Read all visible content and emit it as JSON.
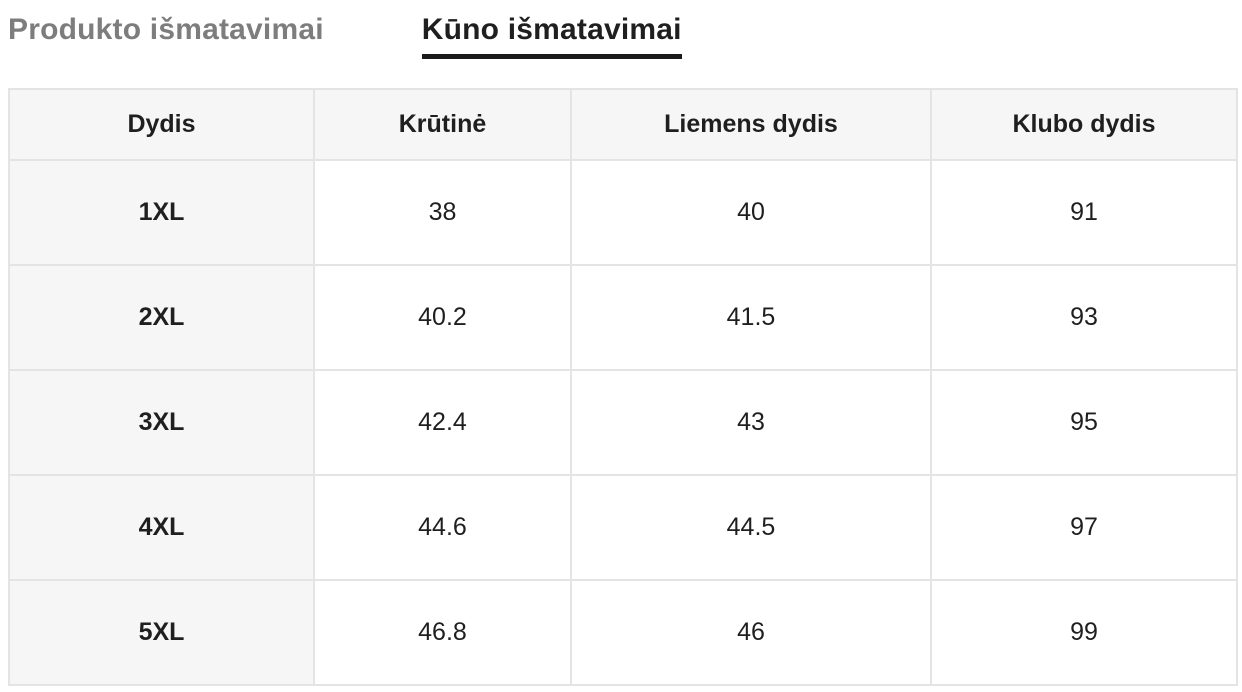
{
  "tabs": [
    {
      "id": "product-measurements",
      "label": "Produkto išmatavimai",
      "active": false
    },
    {
      "id": "body-measurements",
      "label": "Kūno išmatavimai",
      "active": true
    }
  ],
  "table": {
    "headers": [
      "Dydis",
      "Krūtinė",
      "Liemens dydis",
      "Klubo dydis"
    ],
    "rows": [
      {
        "size": "1XL",
        "values": [
          "38",
          "40",
          "91"
        ]
      },
      {
        "size": "2XL",
        "values": [
          "40.2",
          "41.5",
          "93"
        ]
      },
      {
        "size": "3XL",
        "values": [
          "42.4",
          "43",
          "95"
        ]
      },
      {
        "size": "4XL",
        "values": [
          "44.6",
          "44.5",
          "97"
        ]
      },
      {
        "size": "5XL",
        "values": [
          "46.8",
          "46",
          "99"
        ]
      }
    ]
  },
  "colors": {
    "tab_active": "#1f1f1f",
    "tab_inactive": "#7d7d7d",
    "tab_underline": "#1a1a1a",
    "table_border": "#e4e4e4",
    "header_bg": "#f6f6f6",
    "cell_bg": "#ffffff",
    "text": "#1f1f1f"
  }
}
